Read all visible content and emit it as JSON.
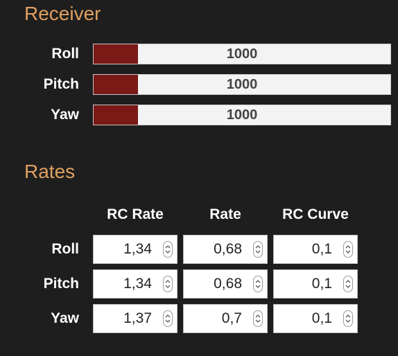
{
  "receiver": {
    "title": "Receiver",
    "channels": [
      {
        "label": "Roll",
        "value": "1000",
        "fill_fraction": 0.15
      },
      {
        "label": "Pitch",
        "value": "1000",
        "fill_fraction": 0.15
      },
      {
        "label": "Yaw",
        "value": "1000",
        "fill_fraction": 0.15
      }
    ]
  },
  "rates": {
    "title": "Rates",
    "columns": [
      "RC Rate",
      "Rate",
      "RC Curve"
    ],
    "rows": [
      {
        "label": "Roll",
        "rc_rate": "1,34",
        "rate": "0,68",
        "rc_curve": "0,1"
      },
      {
        "label": "Pitch",
        "rc_rate": "1,34",
        "rate": "0,68",
        "rc_curve": "0,1"
      },
      {
        "label": "Yaw",
        "rc_rate": "1,37",
        "rate": "0,7",
        "rc_curve": "0,1"
      }
    ]
  },
  "colors": {
    "background": "#1e1e1e",
    "accent": "#e0a060",
    "bar_fill": "#7a1916",
    "bar_track": "#f3f3f3"
  },
  "icons": {
    "stepper": "up-down-chevron-icon"
  }
}
